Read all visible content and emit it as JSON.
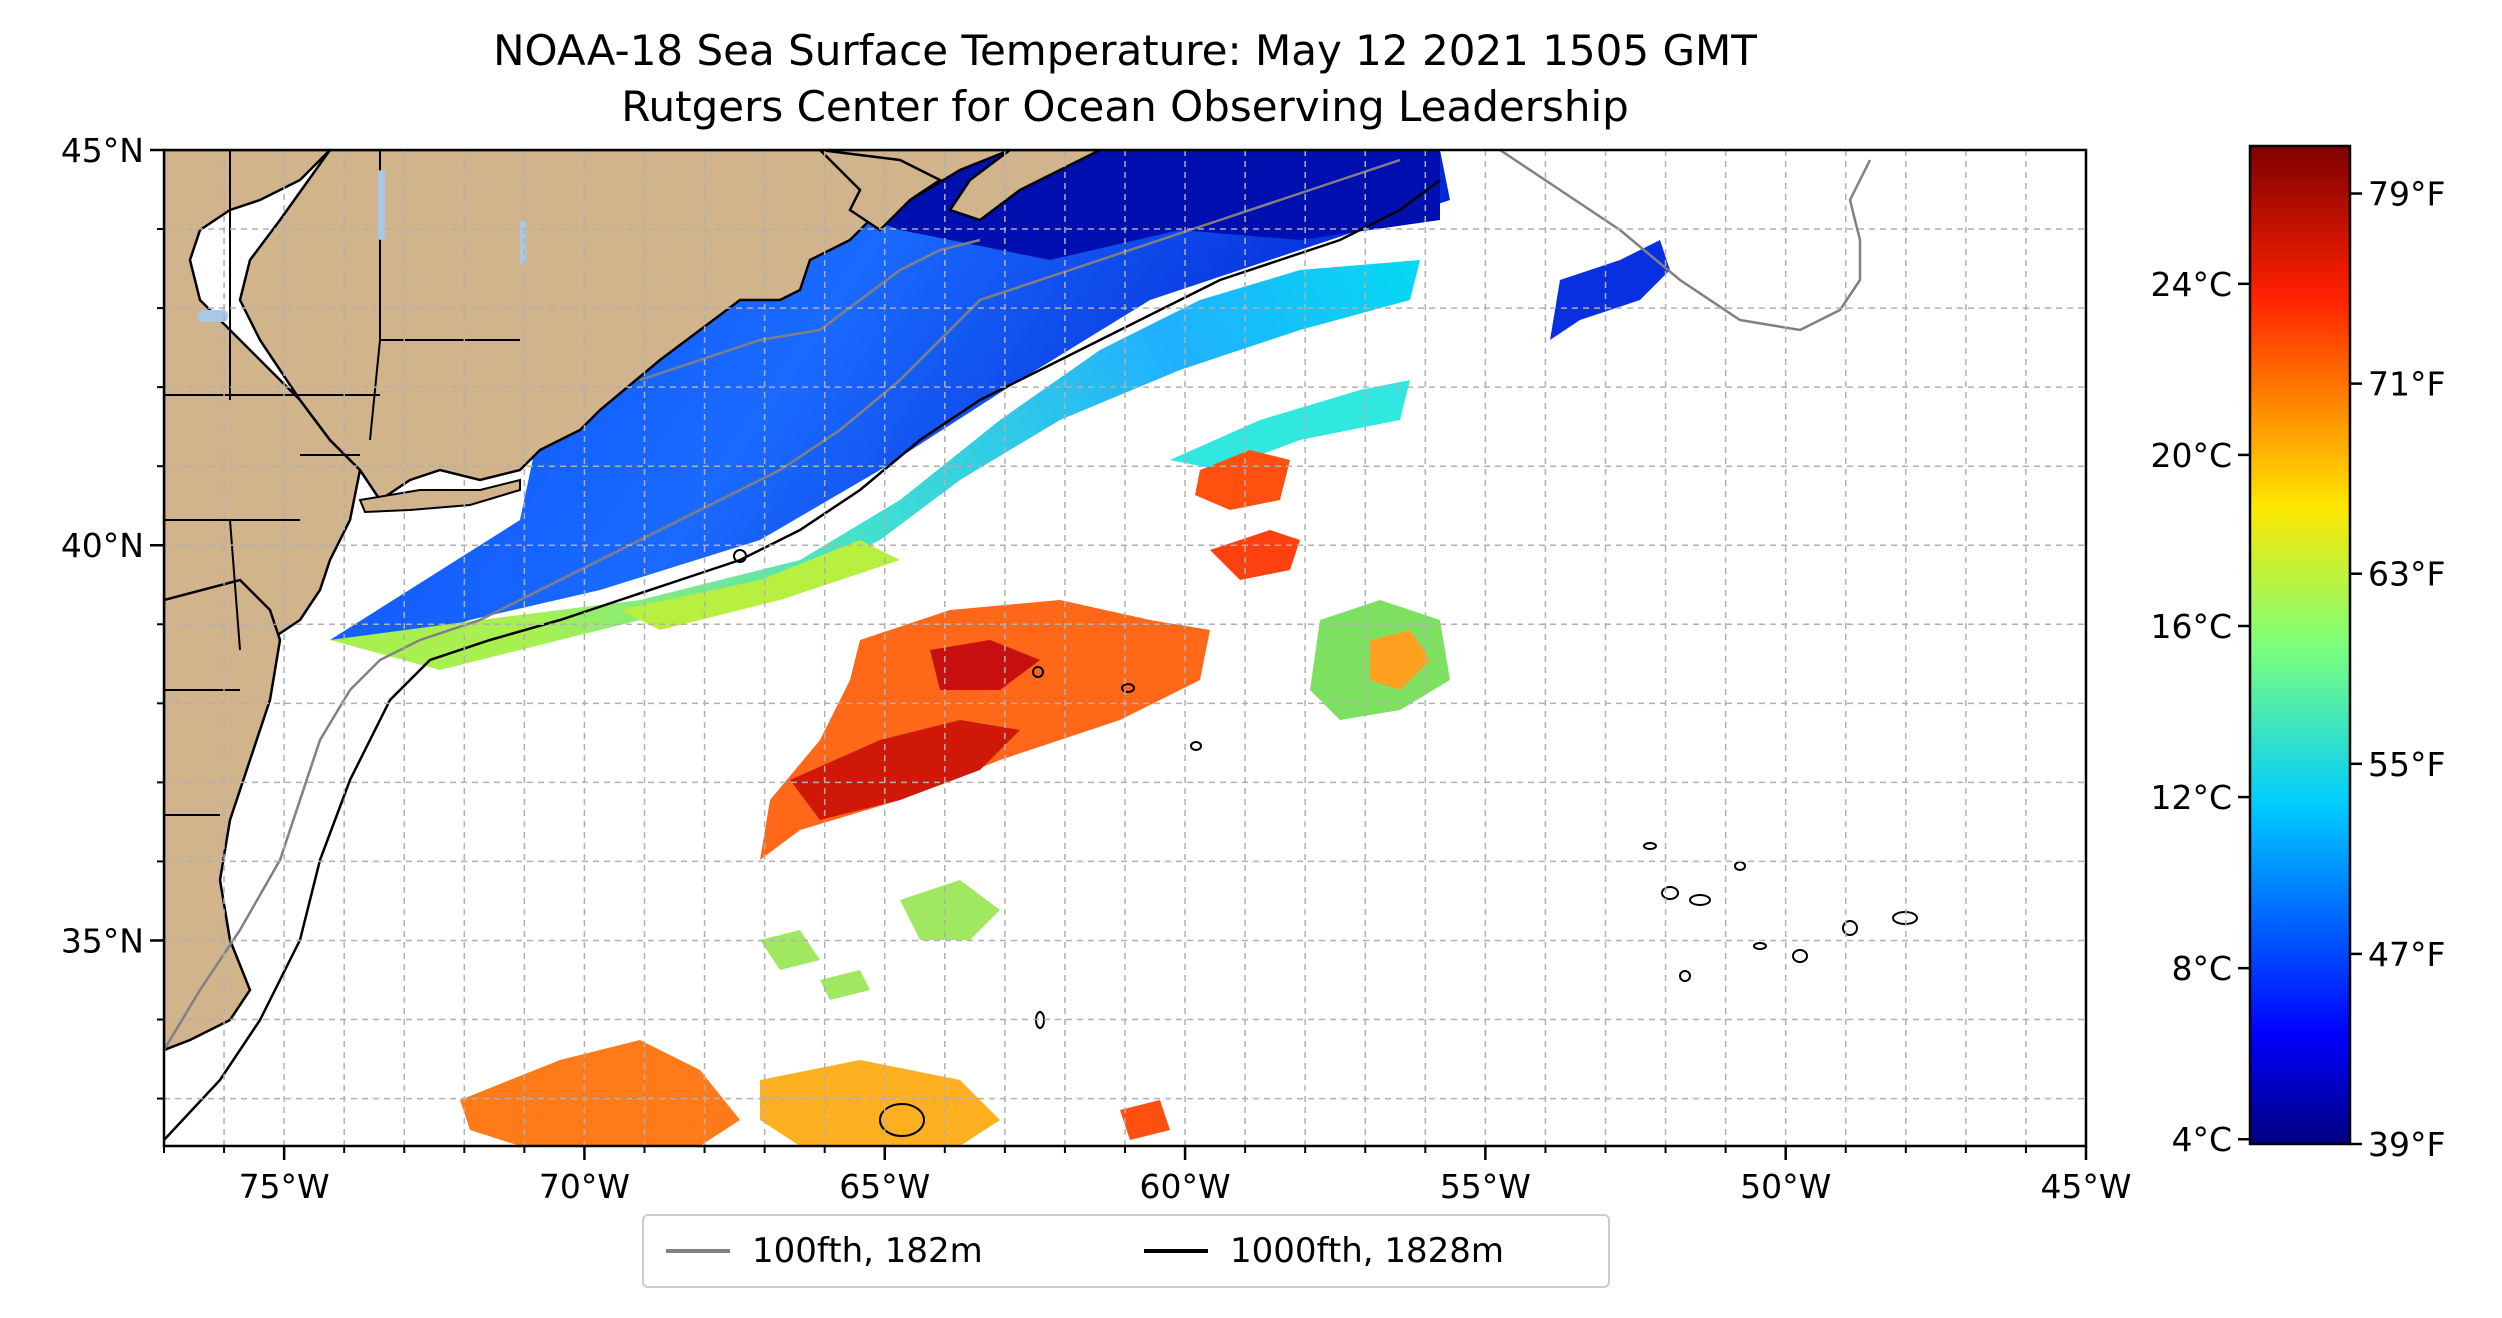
{
  "title": {
    "line1": "NOAA-18 Sea Surface Temperature: May 12 2021 1505 GMT",
    "line2": "Rutgers Center for Ocean Observing Leadership"
  },
  "map": {
    "lon_range": [
      -77,
      -45
    ],
    "lat_range": [
      32.4,
      45
    ],
    "lat_ticks": [
      {
        "value": 45,
        "label": "45°N"
      },
      {
        "value": 40,
        "label": "40°N"
      },
      {
        "value": 35,
        "label": "35°N"
      }
    ],
    "lon_ticks": [
      {
        "value": -75,
        "label": "75°W"
      },
      {
        "value": -70,
        "label": "70°W"
      },
      {
        "value": -65,
        "label": "65°W"
      },
      {
        "value": -60,
        "label": "60°W"
      },
      {
        "value": -55,
        "label": "55°W"
      },
      {
        "value": -50,
        "label": "50°W"
      },
      {
        "value": -45,
        "label": "45°W"
      }
    ],
    "gridlines": true,
    "land_color": "#d2b48c",
    "lake_color": "#a8c8e8"
  },
  "colorbar": {
    "colormap": "jet",
    "celsius_ticks": [
      {
        "value": 24,
        "label": "24°C"
      },
      {
        "value": 20,
        "label": "20°C"
      },
      {
        "value": 16,
        "label": "16°C"
      },
      {
        "value": 12,
        "label": "12°C"
      },
      {
        "value": 8,
        "label": "8°C"
      },
      {
        "value": 4,
        "label": "4°C"
      }
    ],
    "fahrenheit_ticks": [
      {
        "value": 79,
        "label": "79°F"
      },
      {
        "value": 71,
        "label": "71°F"
      },
      {
        "value": 63,
        "label": "63°F"
      },
      {
        "value": 55,
        "label": "55°F"
      },
      {
        "value": 47,
        "label": "47°F"
      },
      {
        "value": 39,
        "label": "39°F"
      }
    ],
    "range_f": [
      39,
      81
    ]
  },
  "legend": {
    "items": [
      {
        "label": "100fth, 182m",
        "color": "#808080"
      },
      {
        "label": "1000fth, 1828m",
        "color": "#000000"
      }
    ]
  }
}
